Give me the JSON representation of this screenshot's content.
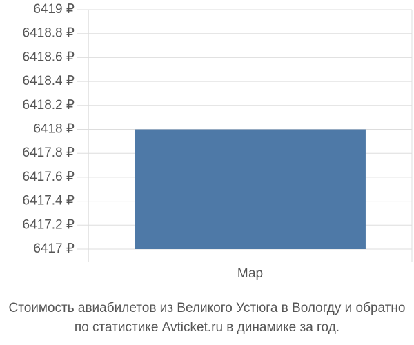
{
  "chart_data": {
    "type": "bar",
    "title": "Стоимость авиабилетов из Великого Устюга в Вологду и обратно",
    "subtitle": "по статистике Avticket.ru в динамике за год.",
    "categories": [
      "Мар"
    ],
    "values": [
      6418
    ],
    "color": "#4e79a7",
    "ylim": [
      6417,
      6419
    ],
    "yticks": [
      {
        "value": 6417,
        "label": "6417 ₽"
      },
      {
        "value": 6417.2,
        "label": "6417.2 ₽"
      },
      {
        "value": 6417.4,
        "label": "6417.4 ₽"
      },
      {
        "value": 6417.6,
        "label": "6417.6 ₽"
      },
      {
        "value": 6417.8,
        "label": "6417.8 ₽"
      },
      {
        "value": 6418,
        "label": "6418 ₽"
      },
      {
        "value": 6418.2,
        "label": "6418.2 ₽"
      },
      {
        "value": 6418.4,
        "label": "6418.4 ₽"
      },
      {
        "value": 6418.6,
        "label": "6418.6 ₽"
      },
      {
        "value": 6418.8,
        "label": "6418.8 ₽"
      },
      {
        "value": 6419,
        "label": "6419 ₽"
      }
    ],
    "grid": true
  }
}
